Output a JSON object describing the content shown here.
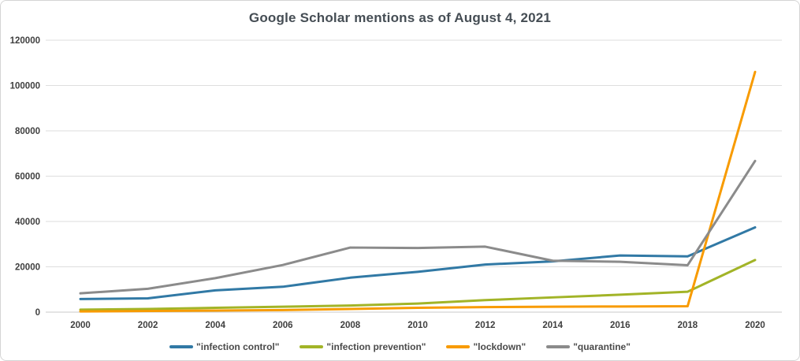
{
  "chart_data": {
    "type": "line",
    "title": "Google Scholar mentions as of August 4, 2021",
    "x": [
      2000,
      2002,
      2004,
      2006,
      2008,
      2010,
      2012,
      2014,
      2016,
      2018,
      2020
    ],
    "xlabel": "",
    "ylabel": "",
    "ylim": [
      0,
      120000
    ],
    "ytick_step": 20000,
    "grid": "horizontal",
    "legend_position": "bottom",
    "series": [
      {
        "name": "\"infection control\"",
        "color": "#3179a5",
        "values": [
          5800,
          6100,
          9600,
          11200,
          15200,
          17800,
          21000,
          22400,
          25000,
          24600,
          37400
        ]
      },
      {
        "name": "\"infection prevention\"",
        "color": "#a2b427",
        "values": [
          1100,
          1400,
          1900,
          2400,
          2900,
          3800,
          5300,
          6500,
          7700,
          9000,
          23000
        ]
      },
      {
        "name": "\"lockdown\"",
        "color": "#f89b00",
        "values": [
          300,
          500,
          700,
          900,
          1400,
          1900,
          2200,
          2400,
          2500,
          2600,
          106000
        ]
      },
      {
        "name": "\"quarantine\"",
        "color": "#8b8b8b",
        "values": [
          8300,
          10300,
          15000,
          20800,
          28500,
          28300,
          28900,
          22700,
          22200,
          20700,
          66700
        ]
      }
    ],
    "style": {
      "gridline_color": "#dedede",
      "baseline_color": "#c9c9c9",
      "title_color": "#454d54",
      "tick_label_color": "#3f3f3f",
      "background": "#ffffff"
    }
  }
}
